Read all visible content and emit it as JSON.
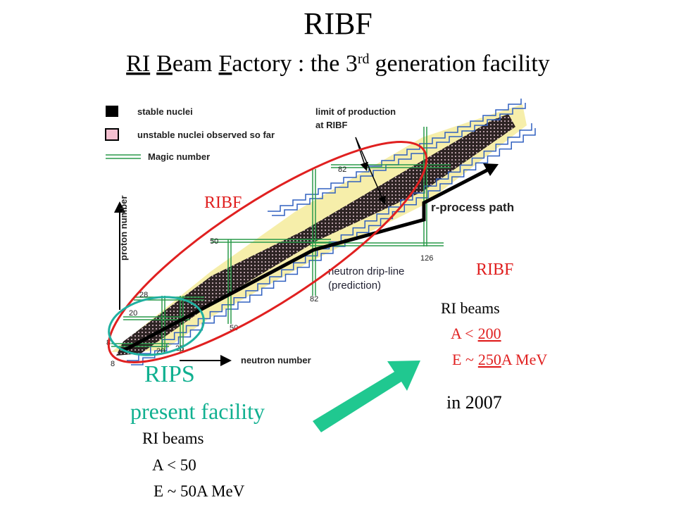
{
  "title": "RIBF",
  "subtitle": [
    "RI",
    "B",
    "eam",
    "F",
    "actory : the 3",
    "rd",
    "generation facility"
  ],
  "diagram": {
    "legend": [
      "stable nuclei",
      "unstable nuclei observed so far",
      "Magic number"
    ],
    "annotation": [
      "limit of production",
      "at RIBF"
    ],
    "path_label": "r-process path",
    "drip_line": [
      "neutron drip-line",
      "(prediction)"
    ],
    "y_axis": "proton number",
    "x_axis": "neutron number",
    "numbers": [
      "82",
      "50",
      "126",
      "28",
      "20",
      "8",
      "82",
      "50",
      "8",
      "20",
      "28"
    ]
  },
  "labels": {
    "ribf_chart": "RIBF",
    "rips": "RIPS",
    "present": "present facility",
    "ribf": "RIBF",
    "in_year": "in 2007"
  },
  "present_beams": [
    "RI beams",
    "A < 50",
    "E ~ 50A MeV"
  ],
  "ribf_beams": {
    "title": "RI beams",
    "mass": [
      "A <",
      "200"
    ],
    "energy": [
      "E ~",
      "250",
      "A MeV"
    ]
  }
}
